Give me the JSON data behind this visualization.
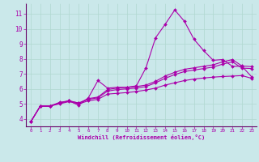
{
  "bg_color": "#cae8ea",
  "grid_color": "#b0d8d0",
  "line_color": "#aa00aa",
  "xlabel": "Windchill (Refroidissement éolien,°C)",
  "xlim": [
    -0.5,
    23.5
  ],
  "ylim": [
    3.5,
    11.7
  ],
  "yticks": [
    4,
    5,
    6,
    7,
    8,
    9,
    10,
    11
  ],
  "xticks": [
    0,
    1,
    2,
    3,
    4,
    5,
    6,
    7,
    8,
    9,
    10,
    11,
    12,
    13,
    14,
    15,
    16,
    17,
    18,
    19,
    20,
    21,
    22,
    23
  ],
  "series": [
    {
      "x": [
        0,
        1,
        2,
        3,
        4,
        5,
        6,
        7,
        8,
        9,
        10,
        11,
        12,
        13,
        14,
        15,
        16,
        17,
        18,
        19,
        20,
        21,
        22,
        23
      ],
      "y": [
        3.8,
        4.85,
        4.85,
        5.1,
        5.2,
        4.9,
        5.4,
        6.55,
        6.05,
        6.1,
        6.1,
        6.2,
        7.4,
        9.4,
        10.3,
        11.25,
        10.5,
        9.3,
        8.55,
        7.9,
        7.95,
        7.5,
        7.5,
        6.8
      ]
    },
    {
      "x": [
        0,
        1,
        2,
        3,
        4,
        5,
        6,
        7,
        8,
        9,
        10,
        11,
        12,
        13,
        14,
        15,
        16,
        17,
        18,
        19,
        20,
        21,
        22,
        23
      ],
      "y": [
        3.8,
        4.85,
        4.85,
        5.05,
        5.2,
        5.05,
        5.35,
        5.45,
        5.95,
        6.05,
        6.1,
        6.15,
        6.25,
        6.5,
        6.85,
        7.1,
        7.3,
        7.4,
        7.5,
        7.6,
        7.8,
        7.95,
        7.52,
        7.48
      ]
    },
    {
      "x": [
        0,
        1,
        2,
        3,
        4,
        5,
        6,
        7,
        8,
        9,
        10,
        11,
        12,
        13,
        14,
        15,
        16,
        17,
        18,
        19,
        20,
        21,
        22,
        23
      ],
      "y": [
        3.8,
        4.85,
        4.85,
        5.05,
        5.2,
        5.05,
        5.3,
        5.4,
        5.85,
        5.95,
        6.0,
        6.05,
        6.15,
        6.4,
        6.7,
        6.95,
        7.15,
        7.25,
        7.35,
        7.45,
        7.65,
        7.8,
        7.38,
        7.35
      ]
    },
    {
      "x": [
        0,
        1,
        2,
        3,
        4,
        5,
        6,
        7,
        8,
        9,
        10,
        11,
        12,
        13,
        14,
        15,
        16,
        17,
        18,
        19,
        20,
        21,
        22,
        23
      ],
      "y": [
        3.8,
        4.85,
        4.85,
        5.0,
        5.15,
        5.0,
        5.2,
        5.3,
        5.65,
        5.7,
        5.75,
        5.82,
        5.92,
        6.05,
        6.25,
        6.4,
        6.55,
        6.65,
        6.72,
        6.78,
        6.82,
        6.85,
        6.88,
        6.7
      ]
    }
  ]
}
